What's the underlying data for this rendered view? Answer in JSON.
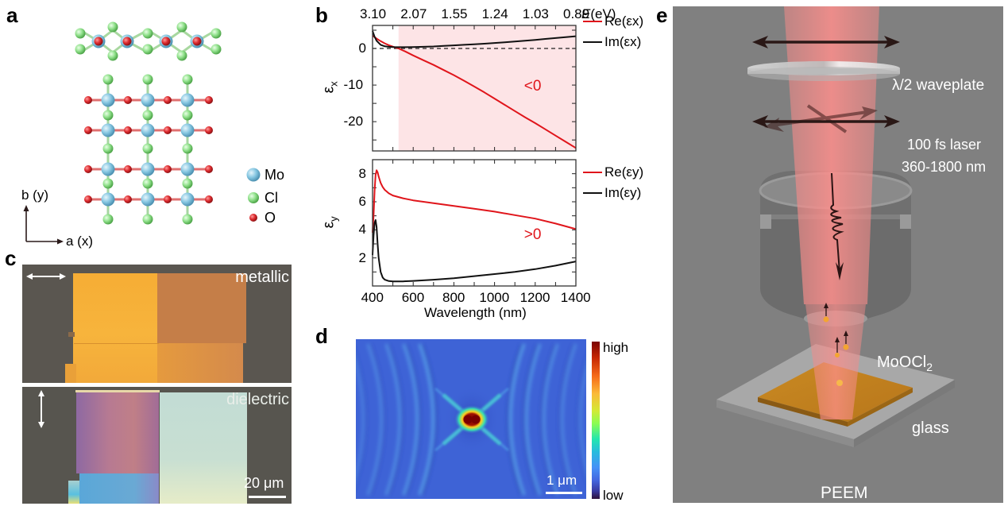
{
  "panels": {
    "a": {
      "label": "a",
      "legend": [
        {
          "element": "Mo",
          "color": "#7fc4e0"
        },
        {
          "element": "Cl",
          "color": "#8fe08a"
        },
        {
          "element": "O",
          "color": "#d8262a"
        }
      ],
      "axes": {
        "y_label": "b (y)",
        "x_label": "a (x)"
      }
    },
    "b": {
      "label": "b",
      "top_axis_label_E": "E",
      "top_axis_label_unit": "(eV)",
      "top_ticks": [
        "3.10",
        "2.07",
        "1.55",
        "1.24",
        "1.03",
        "0.89"
      ]
    },
    "c": {
      "label": "c",
      "top_image_label": "metallic",
      "bottom_image_label": "dielectric",
      "scalebar_label": "20 μm",
      "polarization_top": "horizontal",
      "polarization_bottom": "vertical"
    },
    "d": {
      "label": "d",
      "colorbar_high": "high",
      "colorbar_low": "low",
      "scalebar_label": "1 μm"
    },
    "e": {
      "label": "e",
      "waveplate_label": "λ/2 waveplate",
      "laser_line1": "100 fs laser",
      "laser_line2": "360-1800 nm",
      "material_label": "MoOCl",
      "material_subscript": "2",
      "substrate_label": "glass",
      "technique_label": "PEEM"
    }
  },
  "chart_data": [
    {
      "type": "line",
      "name": "epsilon_x",
      "xlabel": "Wavelength (nm)",
      "ylabel": "εx",
      "x2label": "E(eV)",
      "xlim": [
        400,
        1400
      ],
      "ylim": [
        -28,
        6.3
      ],
      "yticks": [
        0,
        -10,
        -20
      ],
      "x2ticks": [
        {
          "wavelength": 400,
          "label": "3.10"
        },
        {
          "wavelength": 600,
          "label": "2.07"
        },
        {
          "wavelength": 800,
          "label": "1.55"
        },
        {
          "wavelength": 1000,
          "label": "1.24"
        },
        {
          "wavelength": 1200,
          "label": "1.03"
        },
        {
          "wavelength": 1400,
          "label": "0.89"
        }
      ],
      "shaded_region": {
        "x_from": 528,
        "x_to": 1400,
        "color": "#fde4e6",
        "meaning": "Re(εx) < 0"
      },
      "reference_line": {
        "y": 0,
        "style": "dashed"
      },
      "annotation": {
        "text": "<0",
        "x": 1200,
        "y": -10.5,
        "color": "#e0151b"
      },
      "x": [
        400,
        410,
        420,
        440,
        460,
        480,
        500,
        528,
        560,
        600,
        650,
        700,
        750,
        800,
        850,
        900,
        950,
        1000,
        1050,
        1100,
        1150,
        1200,
        1250,
        1300,
        1350,
        1400
      ],
      "series": [
        {
          "name": "Re(εx)",
          "color": "#e0151b",
          "values": [
            3.5,
            3.1,
            2.7,
            2.0,
            1.4,
            0.9,
            0.5,
            0.0,
            -0.8,
            -1.9,
            -3.2,
            -4.5,
            -5.9,
            -7.3,
            -8.8,
            -10.4,
            -12.0,
            -13.7,
            -15.4,
            -17.1,
            -18.8,
            -20.4,
            -22.1,
            -23.8,
            -25.5,
            -27.2
          ]
        },
        {
          "name": "Im(εx)",
          "color": "#111111",
          "values": [
            4.8,
            3.2,
            2.1,
            1.0,
            0.6,
            0.45,
            0.4,
            0.35,
            0.35,
            0.4,
            0.45,
            0.55,
            0.7,
            0.85,
            1.0,
            1.15,
            1.3,
            1.5,
            1.7,
            1.9,
            2.1,
            2.35,
            2.6,
            2.85,
            3.1,
            3.35
          ]
        }
      ]
    },
    {
      "type": "line",
      "name": "epsilon_y",
      "xlabel": "Wavelength (nm)",
      "ylabel": "εy",
      "xlim": [
        400,
        1400
      ],
      "ylim": [
        0,
        9
      ],
      "xticks": [
        400,
        600,
        800,
        1000,
        1200,
        1400
      ],
      "yticks": [
        2,
        4,
        6,
        8
      ],
      "annotation": {
        "text": ">0",
        "x": 1200,
        "y": 3.6,
        "color": "#e0151b"
      },
      "x": [
        400,
        405,
        410,
        415,
        420,
        425,
        430,
        440,
        450,
        460,
        480,
        500,
        550,
        600,
        700,
        800,
        900,
        1000,
        1100,
        1200,
        1300,
        1400
      ],
      "series": [
        {
          "name": "Re(εy)",
          "color": "#e0151b",
          "values": [
            3.8,
            5.0,
            6.8,
            7.9,
            8.25,
            8.1,
            7.8,
            7.35,
            7.05,
            6.85,
            6.6,
            6.45,
            6.25,
            6.1,
            5.9,
            5.7,
            5.5,
            5.3,
            5.05,
            4.8,
            4.45,
            4.05
          ]
        },
        {
          "name": "Im(εy)",
          "color": "#111111",
          "values": [
            2.2,
            3.6,
            4.5,
            4.7,
            4.2,
            3.0,
            2.0,
            1.0,
            0.6,
            0.45,
            0.35,
            0.32,
            0.33,
            0.36,
            0.45,
            0.55,
            0.7,
            0.85,
            1.0,
            1.2,
            1.45,
            1.75
          ]
        }
      ]
    }
  ]
}
